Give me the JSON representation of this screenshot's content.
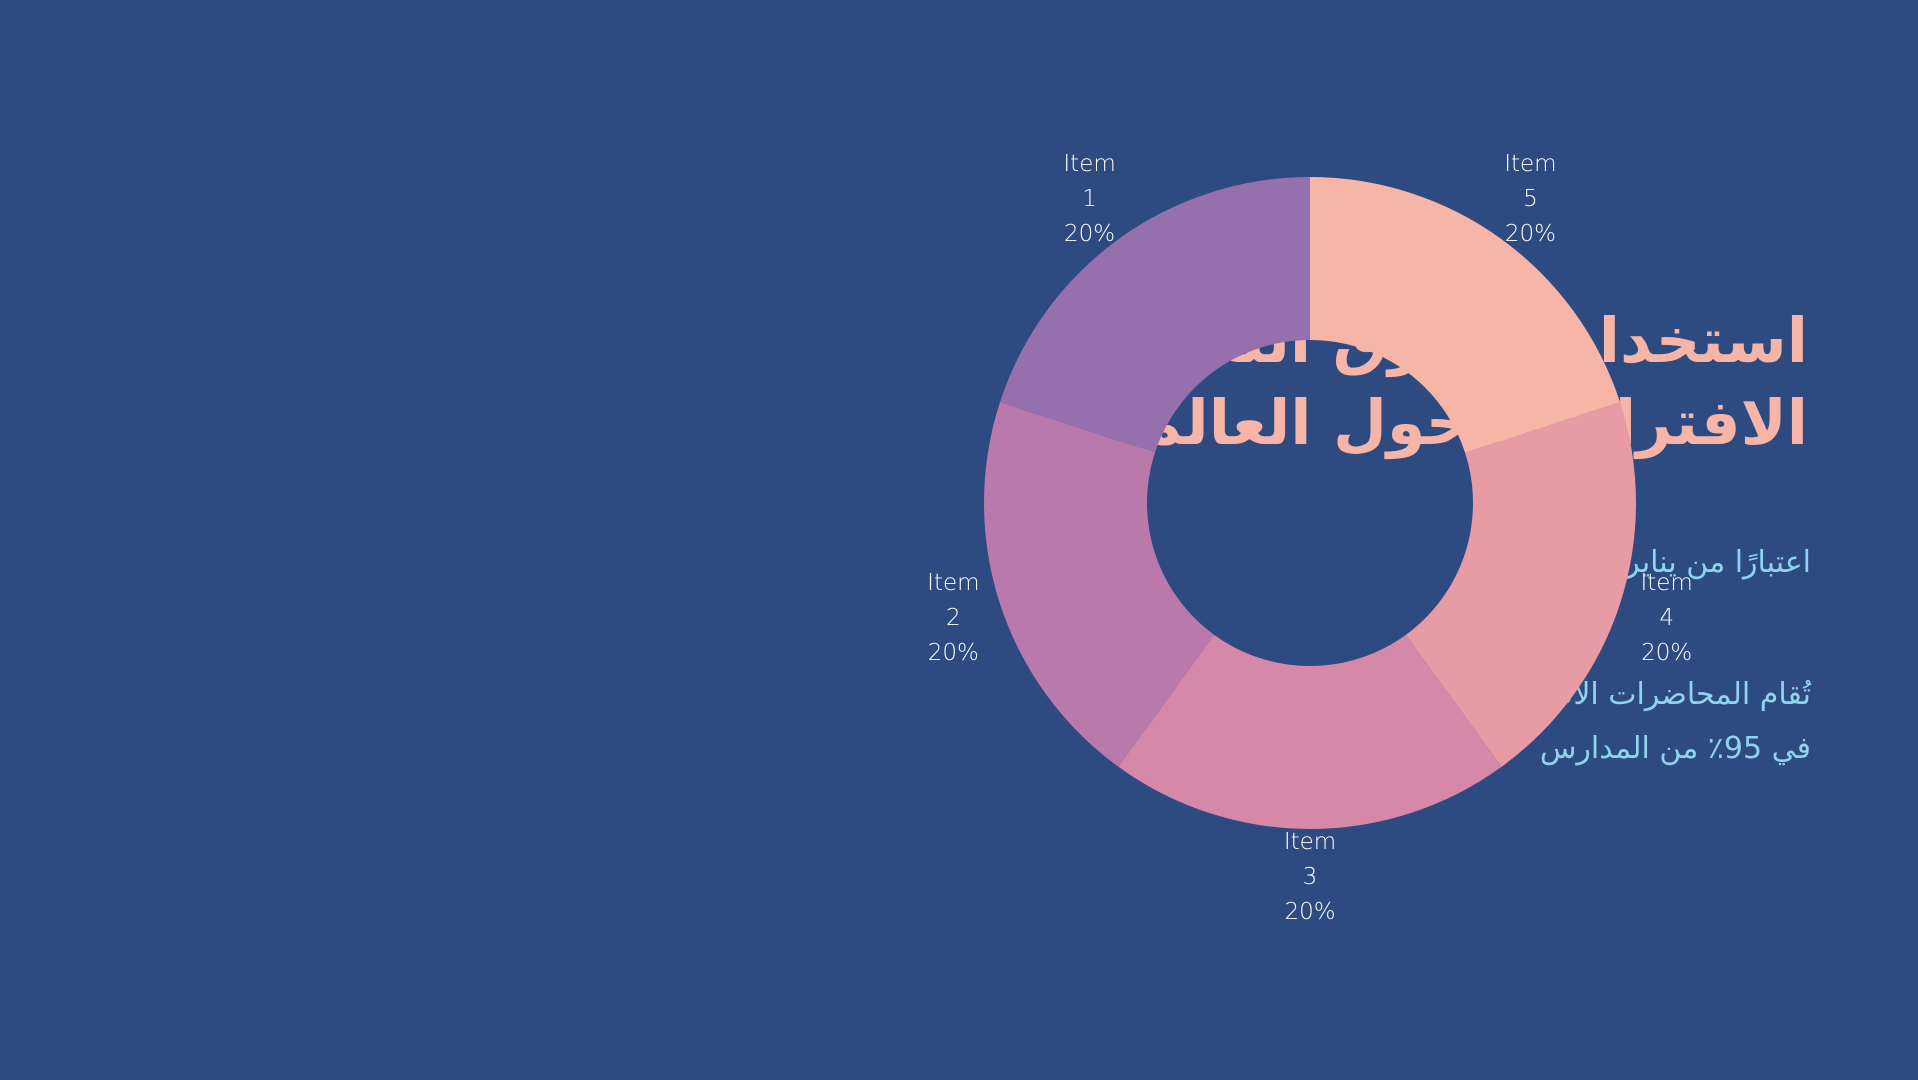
{
  "slide": {
    "title_lines": [
      "استخدام الطرق التعليمية",
      "الافتراضية حول العالم"
    ],
    "paragraphs": [
      "اعتبارًا من يناير",
      "تُقام المحاضرات الافتراضية",
      "في 95٪ من المدارس"
    ]
  },
  "chart_data": {
    "type": "pie",
    "donut": true,
    "categories": [
      "Item 1",
      "Item 2",
      "Item 3",
      "Item 4",
      "Item 5"
    ],
    "values": [
      20,
      20,
      20,
      20,
      20
    ],
    "value_labels": [
      "20%",
      "20%",
      "20%",
      "20%",
      "20%"
    ],
    "colors": [
      "#9570ad",
      "#b97aab",
      "#d588a8",
      "#e79ba4",
      "#f7b5a7"
    ],
    "direction": "counterclockwise"
  }
}
